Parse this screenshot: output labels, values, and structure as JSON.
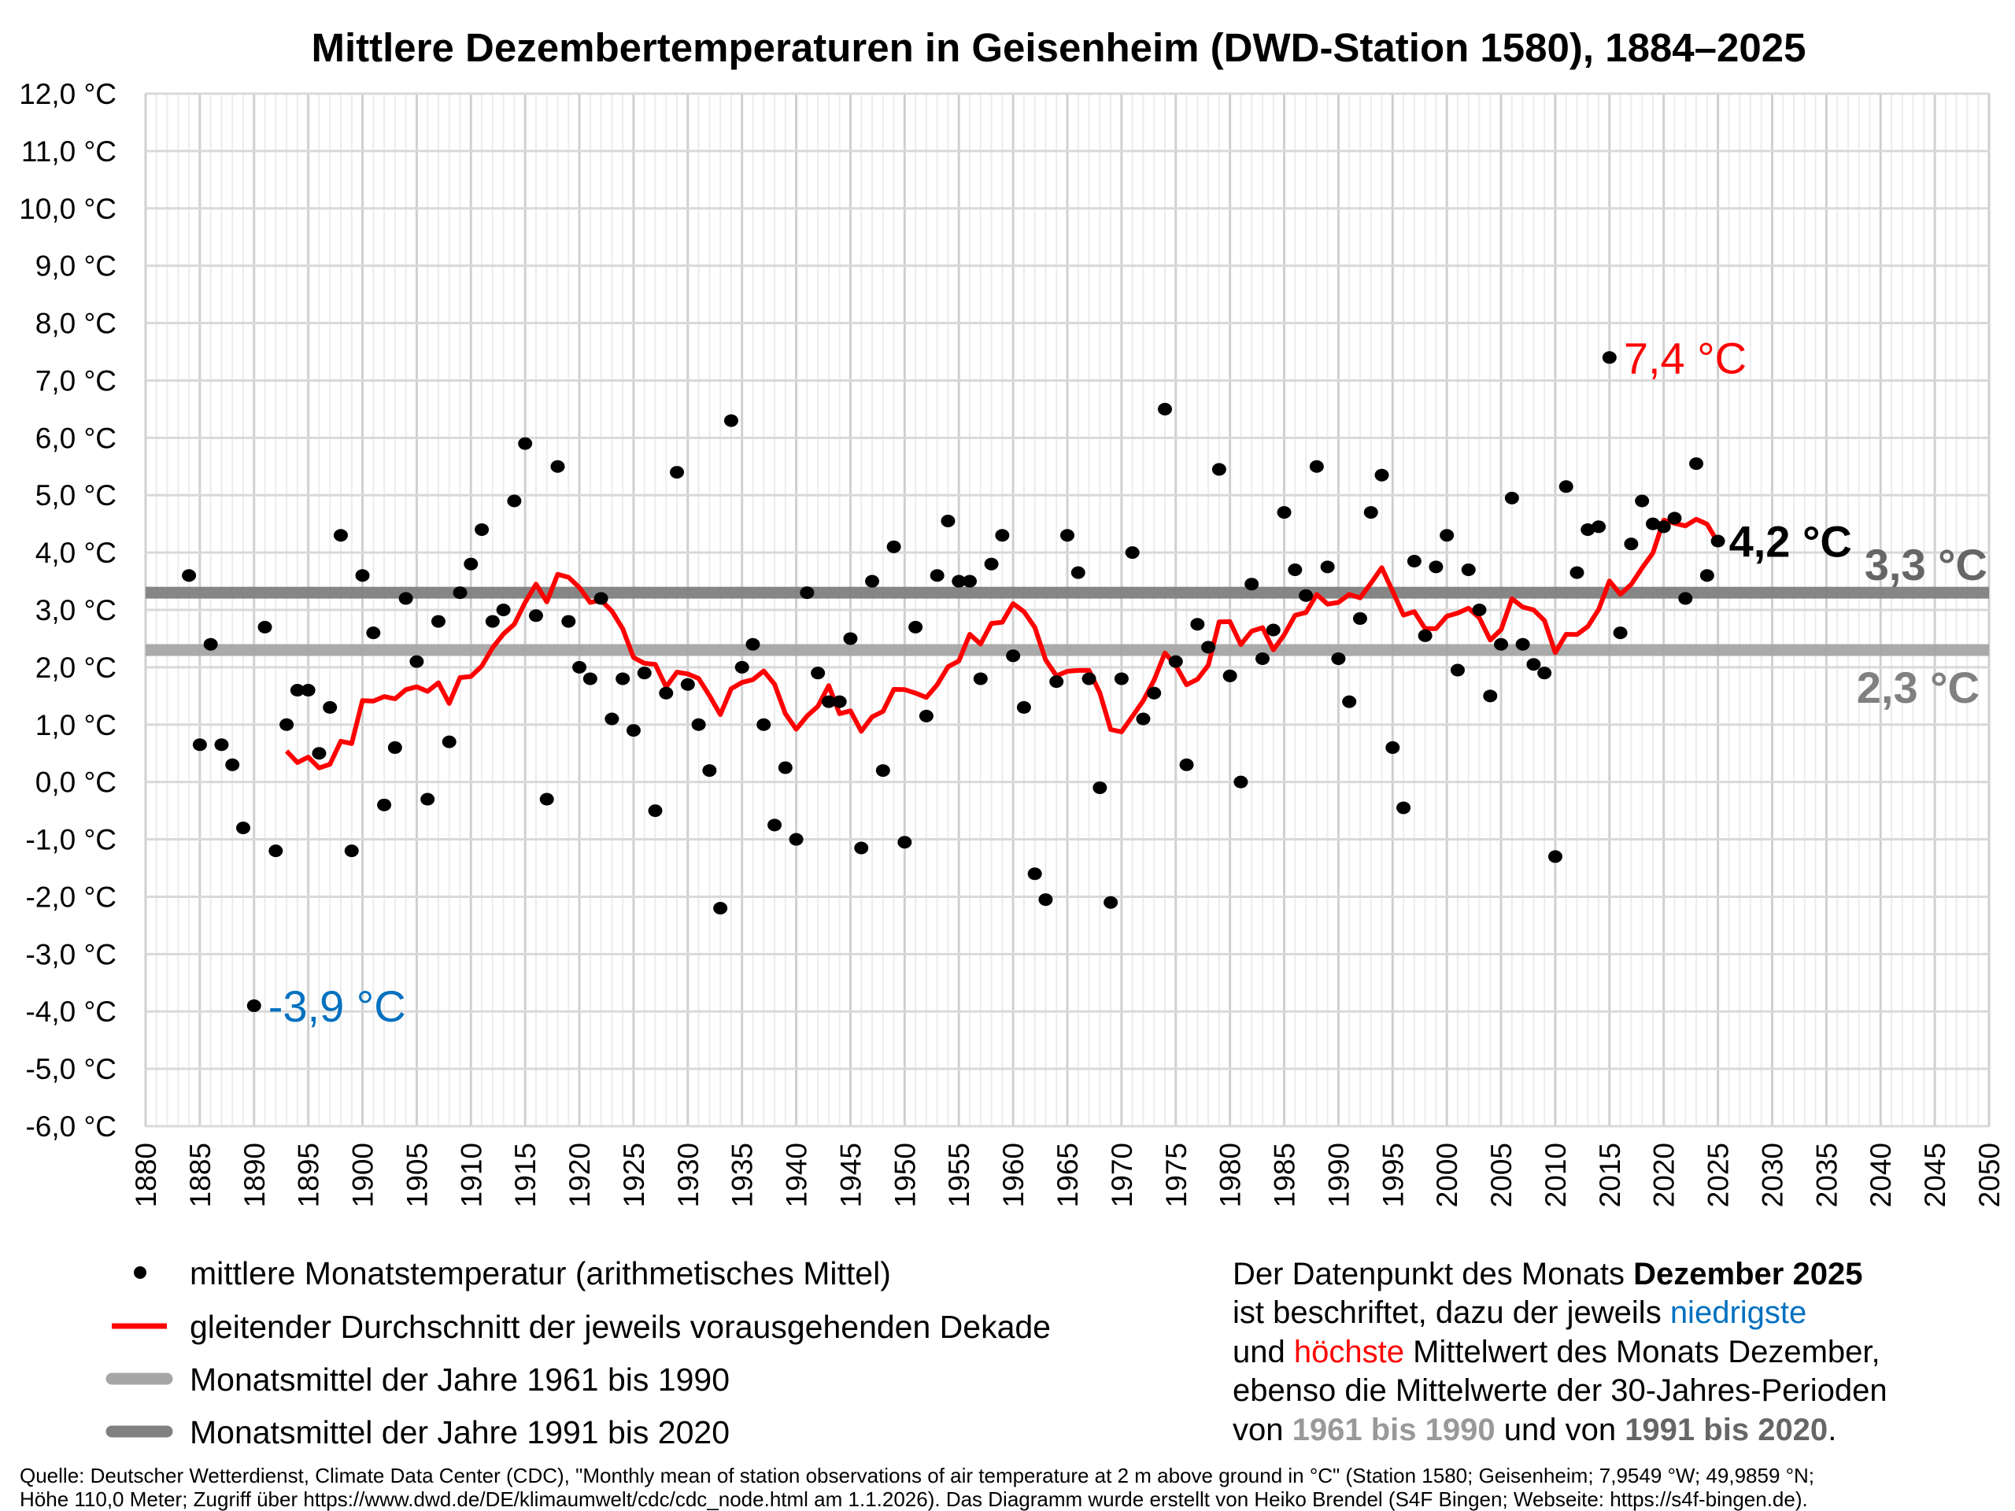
{
  "chart_data": {
    "type": "scatter",
    "title": "Mittlere Dezembertemperaturen in Geisenheim (DWD-Station 1580), 1884–2025",
    "xlabel": "",
    "ylabel": "",
    "xlim": [
      1880,
      2050
    ],
    "ylim": [
      -6,
      12
    ],
    "grid": true,
    "x_ticks": [
      "1880",
      "1885",
      "1890",
      "1895",
      "1900",
      "1905",
      "1910",
      "1915",
      "1920",
      "1925",
      "1930",
      "1935",
      "1940",
      "1945",
      "1950",
      "1955",
      "1960",
      "1965",
      "1970",
      "1975",
      "1980",
      "1985",
      "1990",
      "1995",
      "2000",
      "2005",
      "2010",
      "2015",
      "2020",
      "2025",
      "2030",
      "2035",
      "2040",
      "2045",
      "2050"
    ],
    "y_ticks": [
      "12,0 °C",
      "11,0 °C",
      "10,0 °C",
      "9,0 °C",
      "8,0 °C",
      "7,0 °C",
      "6,0 °C",
      "5,0 °C",
      "4,0 °C",
      "3,0 °C",
      "2,0 °C",
      "1,0 °C",
      "0,0 °C",
      "-1,0 °C",
      "-2,0 °C",
      "-3,0 °C",
      "-4,0 °C",
      "-5,0 °C",
      "-6,0 °C"
    ],
    "start_year": 1884,
    "series": [
      {
        "name": "mittlere Monatstemperatur (arithmetisches Mittel)",
        "color": "#000000",
        "values": [
          3.6,
          0.65,
          2.4,
          0.65,
          0.3,
          -0.8,
          -3.9,
          2.7,
          -1.2,
          1.0,
          1.6,
          1.6,
          0.5,
          1.3,
          4.3,
          -1.2,
          3.6,
          2.6,
          -0.4,
          0.6,
          3.2,
          2.1,
          -0.3,
          2.8,
          0.7,
          3.3,
          3.8,
          4.4,
          2.8,
          3.0,
          4.9,
          5.9,
          2.9,
          -0.3,
          5.5,
          2.8,
          2.0,
          1.8,
          3.2,
          1.1,
          1.8,
          0.9,
          1.9,
          -0.5,
          1.55,
          5.4,
          1.7,
          1.0,
          0.2,
          -2.2,
          6.3,
          2.0,
          2.4,
          1.0,
          -0.75,
          0.25,
          -1.0,
          3.3,
          1.9,
          1.4,
          1.4,
          2.5,
          -1.15,
          3.5,
          0.2,
          4.1,
          -1.05,
          2.7,
          1.15,
          3.6,
          4.55,
          3.5,
          3.5,
          1.8,
          3.8,
          4.3,
          2.2,
          1.3,
          -1.6,
          -2.05,
          1.75,
          4.3,
          3.65,
          1.8,
          -0.1,
          -2.1,
          1.8,
          4.0,
          1.1,
          1.55,
          6.5,
          2.1,
          0.3,
          2.75,
          2.35,
          5.45,
          1.85,
          0.0,
          3.45,
          2.15,
          2.65,
          4.7,
          3.7,
          3.25,
          5.5,
          3.75,
          2.15,
          1.4,
          2.85,
          4.7,
          5.35,
          0.6,
          -0.45,
          3.85,
          2.55,
          3.75,
          4.3,
          1.95,
          3.7,
          3.0,
          1.5,
          2.4,
          4.95,
          2.4,
          2.05,
          1.9,
          -1.3,
          5.15,
          3.65,
          4.4,
          4.45,
          7.4,
          2.6,
          4.15,
          4.9,
          4.5,
          4.45,
          4.6,
          3.2,
          5.55,
          3.6,
          4.2
        ]
      },
      {
        "name": "gleitender Durchschnitt der jeweils vorausgehenden Dekade",
        "color": "#ff0000",
        "window_years": 10
      }
    ],
    "reference_lines": [
      {
        "name": "Monatsmittel der Jahre 1961 bis 1990",
        "value": 2.3,
        "label": "2,3 °C",
        "color": "#a6a6a6"
      },
      {
        "name": "Monatsmittel der Jahre 1991 bis 2020",
        "value": 3.3,
        "label": "3,3 °C",
        "color": "#808080"
      }
    ],
    "annotations": [
      {
        "year": 1890,
        "value": -3.9,
        "label": "-3,9 °C",
        "color": "#0070c0"
      },
      {
        "year": 2015,
        "value": 7.4,
        "label": "7,4 °C",
        "color": "#ff0000"
      },
      {
        "year": 2025,
        "value": 4.2,
        "label": "4,2 °C",
        "color": "#000000"
      }
    ],
    "legend_placement": "bottom-left"
  },
  "legend": [
    "mittlere Monatstemperatur (arithmetisches Mittel)",
    "gleitender Durchschnitt der jeweils vorausgehenden Dekade",
    "Monatsmittel der Jahre 1961 bis 1990",
    "Monatsmittel der Jahre 1991 bis 2020"
  ],
  "note": {
    "l1a": "Der Datenpunkt des Monats ",
    "l1b": "Dezember 2025",
    "l2a": "ist beschriftet, dazu der jeweils ",
    "l2b": "niedrigste",
    "l3a": "und ",
    "l3b": "höchste",
    "l3c": " Mittelwert des Monats Dezember,",
    "l4": "ebenso die Mittelwerte der 30-Jahres-Perioden",
    "l5a": "von ",
    "l5b": "1961 bis 1990",
    "l5c": " und von ",
    "l5d": "1991 bis 2020",
    "l5e": "."
  },
  "footer": {
    "line1": "Quelle: Deutscher Wetterdienst, Climate Data Center (CDC), \"Monthly mean of station observations of air temperature at 2 m above ground in °C\" (Station 1580; Geisenheim; 7,9549 °W; 49,9859 °N;",
    "line2": "Höhe 110,0 Meter; Zugriff über https://www.dwd.de/DE/klimaumwelt/cdc/cdc_node.html am 1.1.2026). Das Diagramm wurde erstellt von Heiko Brendel (S4F Bingen; Webseite: https://s4f-bingen.de)."
  }
}
